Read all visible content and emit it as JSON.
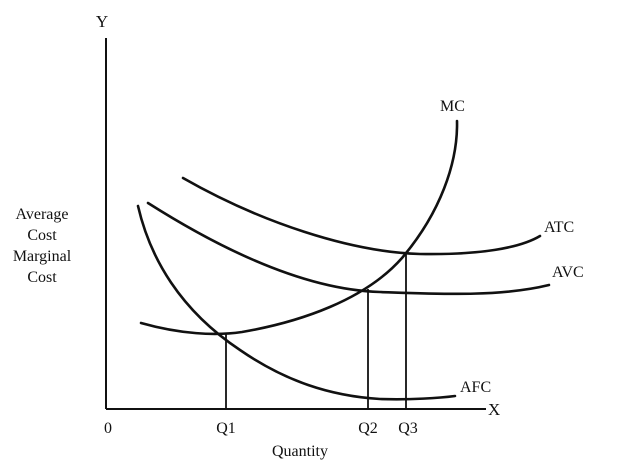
{
  "axes": {
    "y_letter": "Y",
    "x_letter": "X",
    "origin": "0",
    "y_label_lines": [
      "Average",
      "Cost",
      "Marginal",
      "Cost"
    ],
    "x_label": "Quantity"
  },
  "curves": {
    "mc": "MC",
    "atc": "ATC",
    "avc": "AVC",
    "afc": "AFC"
  },
  "quantities": {
    "q1": "Q1",
    "q2": "Q2",
    "q3": "Q3"
  },
  "style": {
    "stroke_color": "#111111",
    "background": "#ffffff"
  }
}
